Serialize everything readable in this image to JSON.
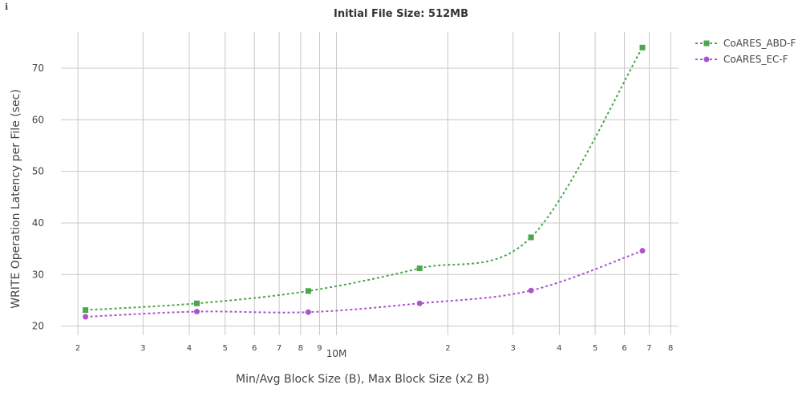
{
  "info_icon": "info-icon",
  "chart_data": {
    "type": "line",
    "title": "Initial File Size: 512MB",
    "xlabel": "Min/Avg Block Size (B), Max Block Size (x2 B)",
    "ylabel": "WRITE Operation Latency per File (sec)",
    "x_scale": "log",
    "x_tick_labels": [
      "2",
      "3",
      "4",
      "5",
      "6",
      "7",
      "8",
      "9",
      "10M",
      "2",
      "3",
      "4",
      "5",
      "6",
      "7",
      "8"
    ],
    "x_tick_values": [
      2000000,
      3000000,
      4000000,
      5000000,
      6000000,
      7000000,
      8000000,
      9000000,
      10000000,
      20000000,
      30000000,
      40000000,
      50000000,
      60000000,
      70000000,
      80000000
    ],
    "xlim": [
      1800000,
      84000000
    ],
    "ylim": [
      19,
      77
    ],
    "y_ticks": [
      20,
      30,
      40,
      50,
      60,
      70
    ],
    "grid": true,
    "legend_position": "top-right",
    "x": [
      2097152,
      4194304,
      8388608,
      16777216,
      33554432,
      67108864
    ],
    "series": [
      {
        "name": "CoARES_ABD-F",
        "color": "#4CA64C",
        "marker": "square",
        "values": [
          23.1,
          24.4,
          26.8,
          31.2,
          37.2,
          74.0
        ]
      },
      {
        "name": "CoARES_EC-F",
        "color": "#AA55CC",
        "marker": "circle",
        "values": [
          21.8,
          22.8,
          22.7,
          24.4,
          26.9,
          34.6
        ]
      }
    ]
  }
}
